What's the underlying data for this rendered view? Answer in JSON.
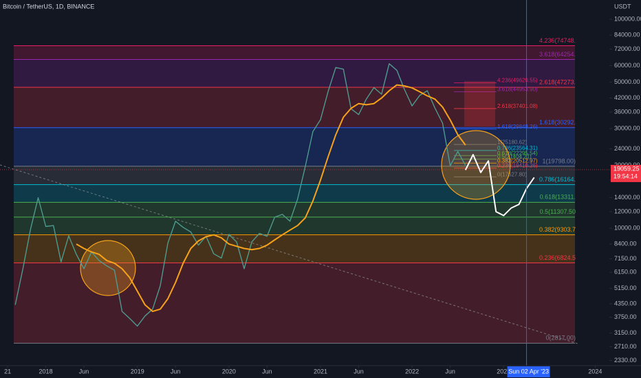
{
  "chart_data": {
    "type": "line",
    "title": "Bitcoin / TetherUS, 1D, BINANCE",
    "y_unit": "USDT",
    "log_scale": true,
    "x": [
      "2017-09",
      "2017-10",
      "2017-11",
      "2017-12",
      "2018-01",
      "2018-02",
      "2018-03",
      "2018-04",
      "2018-05",
      "2018-06",
      "2018-07",
      "2018-08",
      "2018-09",
      "2018-10",
      "2018-11",
      "2018-12",
      "2019-01",
      "2019-02",
      "2019-03",
      "2019-04",
      "2019-05",
      "2019-06",
      "2019-07",
      "2019-08",
      "2019-09",
      "2019-10",
      "2019-11",
      "2019-12",
      "2020-01",
      "2020-02",
      "2020-03",
      "2020-04",
      "2020-05",
      "2020-06",
      "2020-07",
      "2020-08",
      "2020-09",
      "2020-10",
      "2020-11",
      "2020-12",
      "2021-01",
      "2021-02",
      "2021-03",
      "2021-04",
      "2021-05",
      "2021-06",
      "2021-07",
      "2021-08",
      "2021-09",
      "2021-10",
      "2021-11",
      "2021-12",
      "2022-01",
      "2022-02",
      "2022-03",
      "2022-04",
      "2022-05",
      "2022-06",
      "2022-07",
      "2022-08",
      "2022-09",
      "2022-10",
      "2022-11",
      "2022-12",
      "2023-01",
      "2023-02",
      "2023-03",
      "2023-04",
      "2023-05"
    ],
    "series": [
      {
        "color": "#4f9a8e",
        "values": [
          4300,
          6400,
          9900,
          14000,
          10200,
          10300,
          6900,
          9200,
          7500,
          6400,
          7700,
          7000,
          6600,
          6300,
          4000,
          3700,
          3400,
          3800,
          4100,
          5300,
          8500,
          10800,
          10100,
          9600,
          8300,
          9150,
          7550,
          7200,
          9350,
          8600,
          6400,
          8600,
          9450,
          9150,
          11300,
          11650,
          10800,
          13800,
          19700,
          29000,
          33100,
          45200,
          58800,
          57700,
          37300,
          35000,
          41500,
          47100,
          43800,
          61300,
          57000,
          46200,
          38500,
          43200,
          45500,
          37600,
          31800,
          19900,
          23300,
          20000,
          null,
          null,
          null,
          null,
          null,
          null,
          null,
          null,
          null
        ]
      },
      {
        "color": "#f7a21b",
        "values": [
          null,
          null,
          null,
          null,
          null,
          null,
          null,
          null,
          8400,
          8000,
          7700,
          7500,
          7000,
          6800,
          6400,
          5800,
          5000,
          4300,
          4000,
          4100,
          4600,
          5500,
          6800,
          8000,
          8700,
          9100,
          9300,
          9000,
          8400,
          8200,
          8000,
          7900,
          8000,
          8300,
          8800,
          9300,
          9800,
          10300,
          11200,
          13500,
          17000,
          22000,
          28000,
          34000,
          37500,
          39500,
          39000,
          39500,
          42000,
          45500,
          48500,
          48000,
          47000,
          45000,
          43000,
          41500,
          38000,
          33000,
          28000,
          25000,
          null,
          null,
          null,
          null,
          null,
          null,
          null,
          null,
          null
        ]
      },
      {
        "color": "#ffffff",
        "values": [
          null,
          null,
          null,
          null,
          null,
          null,
          null,
          null,
          null,
          null,
          null,
          null,
          null,
          null,
          null,
          null,
          null,
          null,
          null,
          null,
          null,
          null,
          null,
          null,
          null,
          null,
          null,
          null,
          null,
          null,
          null,
          null,
          null,
          null,
          null,
          null,
          null,
          null,
          null,
          null,
          null,
          null,
          null,
          null,
          null,
          null,
          null,
          null,
          null,
          null,
          null,
          null,
          null,
          null,
          null,
          null,
          null,
          null,
          null,
          19000,
          22500,
          18500,
          21000,
          12000,
          11500,
          12500,
          13000,
          15500,
          17500
        ]
      }
    ],
    "xlim": [
      "2017-07",
      "2024-07"
    ],
    "xticks": [
      {
        "value": "2017-08",
        "label": "21"
      },
      {
        "value": "2018-01",
        "label": "2018"
      },
      {
        "value": "2018-06",
        "label": "Jun"
      },
      {
        "value": "2019-01",
        "label": "2019"
      },
      {
        "value": "2019-06",
        "label": "Jun"
      },
      {
        "value": "2020-01",
        "label": "2020"
      },
      {
        "value": "2020-06",
        "label": "Jun"
      },
      {
        "value": "2021-01",
        "label": "2021"
      },
      {
        "value": "2021-06",
        "label": "Jun"
      },
      {
        "value": "2022-01",
        "label": "2022"
      },
      {
        "value": "2022-06",
        "label": "Jun"
      },
      {
        "value": "2023-01",
        "label": "2023"
      },
      {
        "value": "2024-01",
        "label": "2024"
      }
    ],
    "ylim": [
      2200,
      120000
    ],
    "yticks": [
      {
        "value": 100000,
        "label": "100000.00"
      },
      {
        "value": 84000,
        "label": "84000.00"
      },
      {
        "value": 72000,
        "label": "72000.00"
      },
      {
        "value": 60000,
        "label": "60000.00"
      },
      {
        "value": 50000,
        "label": "50000.00"
      },
      {
        "value": 42000,
        "label": "42000.00"
      },
      {
        "value": 36000,
        "label": "36000.00"
      },
      {
        "value": 30000,
        "label": "30000.00"
      },
      {
        "value": 24000,
        "label": "24000.00"
      },
      {
        "value": 20000,
        "label": "20000.00"
      },
      {
        "value": 17000,
        "label": "17000.00"
      },
      {
        "value": 14000,
        "label": "14000.00"
      },
      {
        "value": 12000,
        "label": "12000.00"
      },
      {
        "value": 10000,
        "label": "10000.00"
      },
      {
        "value": 8400,
        "label": "8400.00"
      },
      {
        "value": 7150,
        "label": "7150.00"
      },
      {
        "value": 6150,
        "label": "6150.00"
      },
      {
        "value": 5150,
        "label": "5150.00"
      },
      {
        "value": 4350,
        "label": "4350.00"
      },
      {
        "value": 3750,
        "label": "3750.00"
      },
      {
        "value": 3150,
        "label": "3150.00"
      },
      {
        "value": 2710,
        "label": "2710.00"
      },
      {
        "value": 2330,
        "label": "2330.00"
      }
    ],
    "fib_levels": [
      {
        "label": "4.236(74748.",
        "value": 74748,
        "color": "#e91e63"
      },
      {
        "label": "3.618(64254.",
        "value": 64254,
        "color": "#9c27b0"
      },
      {
        "label": "2.618(47273.",
        "value": 47273,
        "color": "#f23645"
      },
      {
        "label": "1.618(30292.",
        "value": 30292,
        "color": "#2962ff"
      },
      {
        "label": "1(19798.00)",
        "value": 19798,
        "color": "#787b86"
      },
      {
        "label": "0.786(16164.",
        "value": 16164,
        "color": "#00bcd4"
      },
      {
        "label": "0.618(13311.",
        "value": 13311,
        "color": "#4caf50"
      },
      {
        "label": "0.5(11307.50",
        "value": 11307.5,
        "color": "#4caf50"
      },
      {
        "label": "0.382(9303.7",
        "value": 9303.7,
        "color": "#ff9800"
      },
      {
        "label": "0.236(6824.5",
        "value": 6824.5,
        "color": "#f23645"
      },
      {
        "label": "0(2817.00)",
        "value": 2817,
        "color": "#787b86"
      }
    ],
    "fib_levels_small": [
      {
        "label": "4.236(49620.55)",
        "value": 49620.55,
        "color": "#e91e63"
      },
      {
        "label": "3.618(44953.90)",
        "value": 44953.9,
        "color": "#9c27b0"
      },
      {
        "label": "2.618(37401.08)",
        "value": 37401.08,
        "color": "#f23645"
      },
      {
        "label": "1.618(29848.26)",
        "value": 29848.26,
        "color": "#2962ff"
      },
      {
        "label": "1(25180.62)",
        "value": 25180.62,
        "color": "#787b86"
      },
      {
        "label": "0.786(23564.31)",
        "value": 23564.31,
        "color": "#00bcd4"
      },
      {
        "label": "0.618(22295.54)",
        "value": 22295.54,
        "color": "#4caf50"
      },
      {
        "label": "0.5(21404.21)",
        "value": 21404.21,
        "color": "#4caf50"
      },
      {
        "label": "0.382(20512.97)",
        "value": 20512.97,
        "color": "#ff9800"
      },
      {
        "label": "0.236(19410.26)",
        "value": 19410.26,
        "color": "#f23645"
      },
      {
        "label": "0(17627.80)",
        "value": 17627.8,
        "color": "#787b86"
      }
    ],
    "marker": {
      "x": "2023-04",
      "label": "Sun 02 Apr '23"
    },
    "last_price": 19059.25,
    "countdown": "19:54:14"
  }
}
